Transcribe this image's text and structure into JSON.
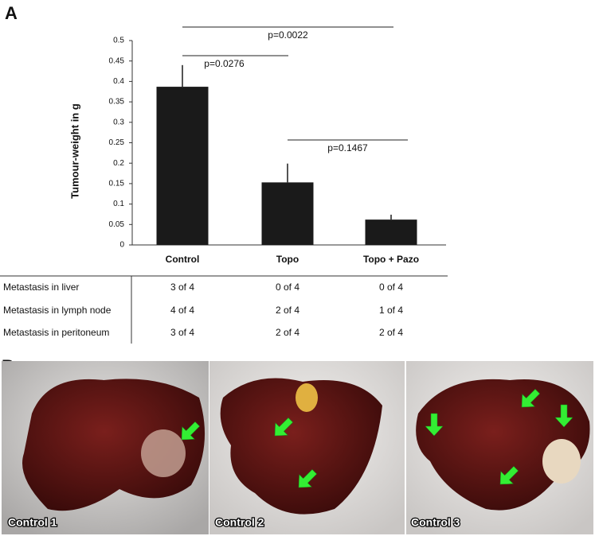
{
  "panel_labels": [
    "A",
    "B"
  ],
  "chart_data": {
    "type": "bar",
    "ylabel": "Tumour-weight in g",
    "categories": [
      "Control",
      "Topo",
      "Topo + Pazo"
    ],
    "values": [
      0.387,
      0.153,
      0.062
    ],
    "errors": [
      0.053,
      0.046,
      0.012
    ],
    "color": "#1a1a1a",
    "ylim": [
      0,
      0.5
    ],
    "yticks": [
      0,
      0.05,
      0.1,
      0.15,
      0.2,
      0.25,
      0.3,
      0.35,
      0.4,
      0.45,
      0.5
    ],
    "comparisons": [
      {
        "label": "p=0.0022",
        "categories": [
          "Control",
          "Topo + Pazo"
        ]
      },
      {
        "label": "p=0.0276",
        "categories": [
          "Control",
          "Topo"
        ]
      },
      {
        "label": "p=0.1467",
        "categories": [
          "Topo",
          "Topo + Pazo"
        ]
      }
    ]
  },
  "table": {
    "rows": [
      [
        "Metastasis in liver",
        "3 of 4",
        "0 of 4",
        "0 of 4"
      ],
      [
        "Metastasis in lymph node",
        "4 of 4",
        "2 of 4",
        "1 of 4"
      ],
      [
        "Metastasis in peritoneum",
        "3 of 4",
        "2 of 4",
        "2 of 4"
      ]
    ]
  },
  "photos": [
    {
      "label": "Control 1"
    },
    {
      "label": "Control 2"
    },
    {
      "label": "Control 3"
    }
  ]
}
